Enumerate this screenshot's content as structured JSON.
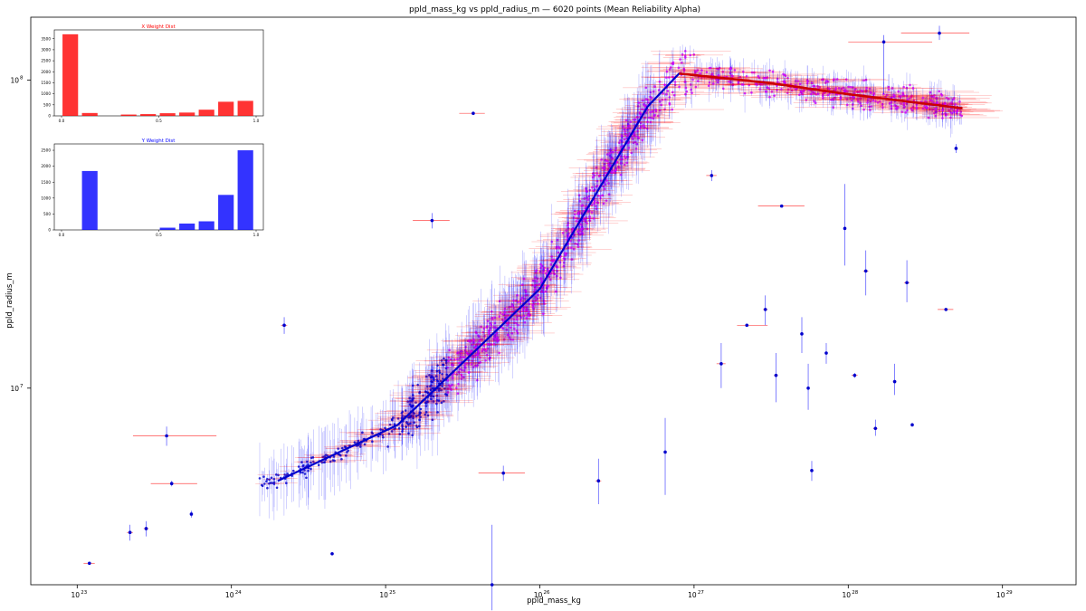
{
  "chart_data": [
    {
      "type": "scatter",
      "title": "ppld_mass_kg vs ppld_radius_m — 6020 points (Mean Reliability Alpha)",
      "xlabel": "ppld_mass_kg",
      "ylabel": "ppld_radius_m",
      "xscale": "log",
      "yscale": "log",
      "xlim": [
        5e+22,
        3e+29
      ],
      "ylim": [
        2300000.0,
        160000000.0
      ],
      "xticks": [
        {
          "value": 1e+23,
          "label": "10",
          "exp": "23"
        },
        {
          "value": 1e+24,
          "label": "10",
          "exp": "24"
        },
        {
          "value": 1e+25,
          "label": "10",
          "exp": "25"
        },
        {
          "value": 1e+26,
          "label": "10",
          "exp": "26"
        },
        {
          "value": 1e+27,
          "label": "10",
          "exp": "27"
        },
        {
          "value": 1e+28,
          "label": "10",
          "exp": "28"
        },
        {
          "value": 1e+29,
          "label": "10",
          "exp": "29"
        }
      ],
      "yticks": [
        {
          "value": 10000000.0,
          "label": "10",
          "exp": "7"
        },
        {
          "value": 100000000.0,
          "label": "10",
          "exp": "8"
        }
      ],
      "point_count": 6020,
      "colors": {
        "x_error": "#ff0000",
        "y_error": "#0000ff",
        "point": "#cc00ff",
        "fit": "#0000cc",
        "fit_high": "#cc0000"
      },
      "fit_line": {
        "x": [
          2e+24,
          1.2e+25,
          1e+26,
          5e+26,
          8e+26,
          3e+27,
          1e+28,
          5.5e+28
        ],
        "y": [
          5000000.0,
          7600000.0,
          21000000.0,
          82000000.0,
          105000000.0,
          98000000.0,
          90000000.0,
          81000000.0
        ]
      },
      "points": [
        {
          "x": 1.2e+23,
          "y": 2700000.0,
          "xerr": [
            1.1e+23,
            1.3e+23
          ],
          "yerr": [
            2700000.0,
            2700000.0
          ]
        },
        {
          "x": 2.2e+23,
          "y": 3400000.0,
          "xerr": [
            2.1e+23,
            2.3e+23
          ],
          "yerr": [
            3200000.0,
            3600000.0
          ]
        },
        {
          "x": 2.8e+23,
          "y": 3500000.0,
          "xerr": [
            2.7e+23,
            2.9e+23
          ],
          "yerr": [
            3300000.0,
            3700000.0
          ]
        },
        {
          "x": 3.8e+23,
          "y": 7000000.0,
          "xerr": [
            2.3e+23,
            8e+23
          ],
          "yerr": [
            6500000.0,
            7500000.0
          ]
        },
        {
          "x": 4.1e+23,
          "y": 4900000.0,
          "xerr": [
            3e+23,
            6e+23
          ],
          "yerr": [
            4800000.0,
            5000000.0
          ]
        },
        {
          "x": 5.5e+23,
          "y": 3900000.0,
          "xerr": [
            5.4e+23,
            5.6e+23
          ],
          "yerr": [
            3800000.0,
            4000000.0
          ]
        },
        {
          "x": 2.2e+24,
          "y": 16000000.0,
          "xerr": [
            2.1e+24,
            2.3e+24
          ],
          "yerr": [
            15000000.0,
            17000000.0
          ]
        },
        {
          "x": 4.5e+24,
          "y": 2900000.0,
          "xerr": [
            4.4e+24,
            4.6e+24
          ],
          "yerr": [
            2900000.0,
            2900000.0
          ]
        },
        {
          "x": 2e+25,
          "y": 35000000.0,
          "xerr": [
            1.5e+25,
            2.6e+25
          ],
          "yerr": [
            33000000.0,
            37000000.0
          ]
        },
        {
          "x": 3.7e+25,
          "y": 78000000.0,
          "xerr": [
            3e+25,
            4.4e+25
          ],
          "yerr": [
            78000000.0,
            78000000.0
          ]
        },
        {
          "x": 4.9e+25,
          "y": 2300000.0,
          "xerr": [
            4.9e+25,
            4.9e+25
          ],
          "yerr": [
            1900000.0,
            3600000.0
          ]
        },
        {
          "x": 5.8e+25,
          "y": 5300000.0,
          "xerr": [
            4e+25,
            8e+25
          ],
          "yerr": [
            5000000.0,
            5600000.0
          ]
        },
        {
          "x": 2.4e+26,
          "y": 5000000.0,
          "xerr": [
            2.3e+26,
            2.5e+26
          ],
          "yerr": [
            4200000.0,
            5900000.0
          ]
        },
        {
          "x": 6.5e+26,
          "y": 6200000.0,
          "xerr": [
            6.4e+26,
            6.6e+26
          ],
          "yerr": [
            4500000.0,
            8000000.0
          ]
        },
        {
          "x": 1.3e+27,
          "y": 49000000.0,
          "xerr": [
            1.2e+27,
            1.4e+27
          ],
          "yerr": [
            47000000.0,
            51000000.0
          ]
        },
        {
          "x": 1.5e+27,
          "y": 12000000.0,
          "xerr": [
            1.4e+27,
            1.6e+27
          ],
          "yerr": [
            10000000.0,
            14000000.0
          ]
        },
        {
          "x": 2.2e+27,
          "y": 16000000.0,
          "xerr": [
            1.9e+27,
            3e+27
          ],
          "yerr": [
            16000000.0,
            16000000.0
          ]
        },
        {
          "x": 2.9e+27,
          "y": 18000000.0,
          "xerr": [
            2.8e+27,
            3e+27
          ],
          "yerr": [
            16000000.0,
            20000000.0
          ]
        },
        {
          "x": 3.4e+27,
          "y": 11000000.0,
          "xerr": [
            3.3e+27,
            3.5e+27
          ],
          "yerr": [
            9000000.0,
            13000000.0
          ]
        },
        {
          "x": 3.7e+27,
          "y": 39000000.0,
          "xerr": [
            2.6e+27,
            5.2e+27
          ],
          "yerr": [
            39000000.0,
            39000000.0
          ]
        },
        {
          "x": 5e+27,
          "y": 15000000.0,
          "xerr": [
            4.9e+27,
            5.1e+27
          ],
          "yerr": [
            13000000.0,
            17000000.0
          ]
        },
        {
          "x": 5.5e+27,
          "y": 10000000.0,
          "xerr": [
            5.4e+27,
            5.6e+27
          ],
          "yerr": [
            8500000.0,
            12000000.0
          ]
        },
        {
          "x": 5.8e+27,
          "y": 5400000.0,
          "xerr": [
            5.7e+27,
            5.9e+27
          ],
          "yerr": [
            5000000.0,
            5800000.0
          ]
        },
        {
          "x": 7.2e+27,
          "y": 13000000.0,
          "xerr": [
            7.1e+27,
            7.3e+27
          ],
          "yerr": [
            12000000.0,
            14000000.0
          ]
        },
        {
          "x": 9.5e+27,
          "y": 33000000.0,
          "xerr": [
            9.4e+27,
            9.6e+27
          ],
          "yerr": [
            25000000.0,
            46000000.0
          ]
        },
        {
          "x": 1.1e+28,
          "y": 11000000.0,
          "xerr": [
            1.05e+28,
            1.15e+28
          ],
          "yerr": [
            10800000.0,
            11200000.0
          ]
        },
        {
          "x": 1.3e+28,
          "y": 24000000.0,
          "xerr": [
            1.25e+28,
            1.35e+28
          ],
          "yerr": [
            20000000.0,
            28000000.0
          ]
        },
        {
          "x": 1.5e+28,
          "y": 7400000.0,
          "xerr": [
            1.45e+28,
            1.55e+28
          ],
          "yerr": [
            7000000.0,
            7900000.0
          ]
        },
        {
          "x": 1.7e+28,
          "y": 133000000.0,
          "xerr": [
            1e+28,
            3.5e+28
          ],
          "yerr": [
            90000000.0,
            140000000.0
          ]
        },
        {
          "x": 2e+28,
          "y": 10500000.0,
          "xerr": [
            1.95e+28,
            2.05e+28
          ],
          "yerr": [
            9500000.0,
            12000000.0
          ]
        },
        {
          "x": 2.4e+28,
          "y": 22000000.0,
          "xerr": [
            2.3e+28,
            2.5e+28
          ],
          "yerr": [
            19000000.0,
            26000000.0
          ]
        },
        {
          "x": 2.6e+28,
          "y": 7600000.0,
          "xerr": [
            2.55e+28,
            2.65e+28
          ],
          "yerr": [
            7500000.0,
            7700000.0
          ]
        },
        {
          "x": 3.9e+28,
          "y": 142000000.0,
          "xerr": [
            2.2e+28,
            6.1e+28
          ],
          "yerr": [
            135000000.0,
            150000000.0
          ]
        },
        {
          "x": 4.3e+28,
          "y": 18000000.0,
          "xerr": [
            3.8e+28,
            4.8e+28
          ],
          "yerr": [
            18000000.0,
            18000000.0
          ]
        },
        {
          "x": 5e+28,
          "y": 60000000.0,
          "xerr": [
            4.9e+28,
            5.1e+28
          ],
          "yerr": [
            58000000.0,
            62000000.0
          ]
        }
      ]
    },
    {
      "type": "bar",
      "title": "X Weight Dist",
      "categories": [
        0.0,
        0.1,
        0.2,
        0.3,
        0.4,
        0.5,
        0.6,
        0.7,
        0.8,
        0.9
      ],
      "values": [
        3700,
        130,
        0,
        60,
        80,
        120,
        150,
        280,
        640,
        680
      ],
      "xticks": [
        0.0,
        0.5,
        1.0
      ],
      "xtick_labels": [
        "0.0",
        "0.5",
        "1.0"
      ],
      "yticks": [
        0,
        500,
        1000,
        1500,
        2000,
        2500,
        3000,
        3500
      ],
      "ylim": [
        0,
        3900
      ],
      "xlabel": "",
      "ylabel": "",
      "color": "#ff0000"
    },
    {
      "type": "bar",
      "title": "Y Weight Dist",
      "categories": [
        0.0,
        0.1,
        0.2,
        0.3,
        0.4,
        0.5,
        0.6,
        0.7,
        0.8,
        0.9
      ],
      "values": [
        0,
        1850,
        0,
        0,
        0,
        70,
        200,
        270,
        1100,
        2500
      ],
      "xticks": [
        0.0,
        0.5,
        1.0
      ],
      "xtick_labels": [
        "0.0",
        "0.5",
        "1.0"
      ],
      "yticks": [
        0,
        500,
        1000,
        1500,
        2000,
        2500
      ],
      "ylim": [
        0,
        2700
      ],
      "xlabel": "",
      "ylabel": "",
      "color": "#0000ff"
    }
  ]
}
